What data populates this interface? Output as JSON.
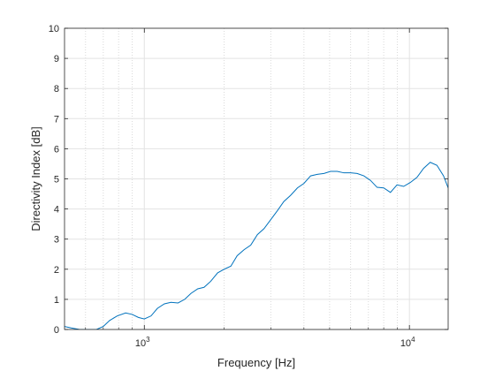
{
  "chart_data": {
    "type": "line",
    "title": "",
    "xlabel": "Frequency [Hz]",
    "ylabel": "Directivity Index [dB]",
    "xscale": "log",
    "xlim": [
      500,
      14000
    ],
    "ylim": [
      0,
      10
    ],
    "grid": true,
    "minor_grid_x": true,
    "legend": "none",
    "line_color": "#0072BD",
    "x_ticks": [
      {
        "value": 1000,
        "base": "10",
        "exp": "3"
      },
      {
        "value": 10000,
        "base": "10",
        "exp": "4"
      }
    ],
    "y_ticks": [
      "0",
      "1",
      "2",
      "3",
      "4",
      "5",
      "6",
      "7",
      "8",
      "9",
      "10"
    ],
    "series": [
      {
        "x": [
          500,
          530,
          570,
          630,
          660,
          700,
          740,
          790,
          850,
          900,
          950,
          1000,
          1060,
          1120,
          1190,
          1260,
          1340,
          1420,
          1500,
          1590,
          1680,
          1780,
          1890,
          2000,
          2120,
          2240,
          2380,
          2520,
          2670,
          2830,
          3000,
          3180,
          3360,
          3560,
          3780,
          4000,
          4240,
          4490,
          4760,
          5040,
          5340,
          5660,
          6000,
          6350,
          6730,
          7130,
          7550,
          8000,
          8480,
          8980,
          9510,
          10080,
          10680,
          11310,
          11980,
          12700,
          13450,
          14000
        ],
        "y": [
          0.1,
          0.05,
          0.0,
          0.0,
          0.0,
          0.1,
          0.3,
          0.45,
          0.55,
          0.5,
          0.4,
          0.35,
          0.45,
          0.7,
          0.85,
          0.9,
          0.88,
          1.0,
          1.2,
          1.35,
          1.4,
          1.6,
          1.88,
          2.0,
          2.1,
          2.45,
          2.65,
          2.8,
          3.15,
          3.35,
          3.65,
          3.95,
          4.25,
          4.45,
          4.7,
          4.85,
          5.1,
          5.15,
          5.18,
          5.25,
          5.25,
          5.2,
          5.2,
          5.18,
          5.1,
          4.95,
          4.72,
          4.7,
          4.55,
          4.8,
          4.75,
          4.88,
          5.05,
          5.35,
          5.55,
          5.45,
          5.1,
          4.7
        ]
      }
    ]
  }
}
